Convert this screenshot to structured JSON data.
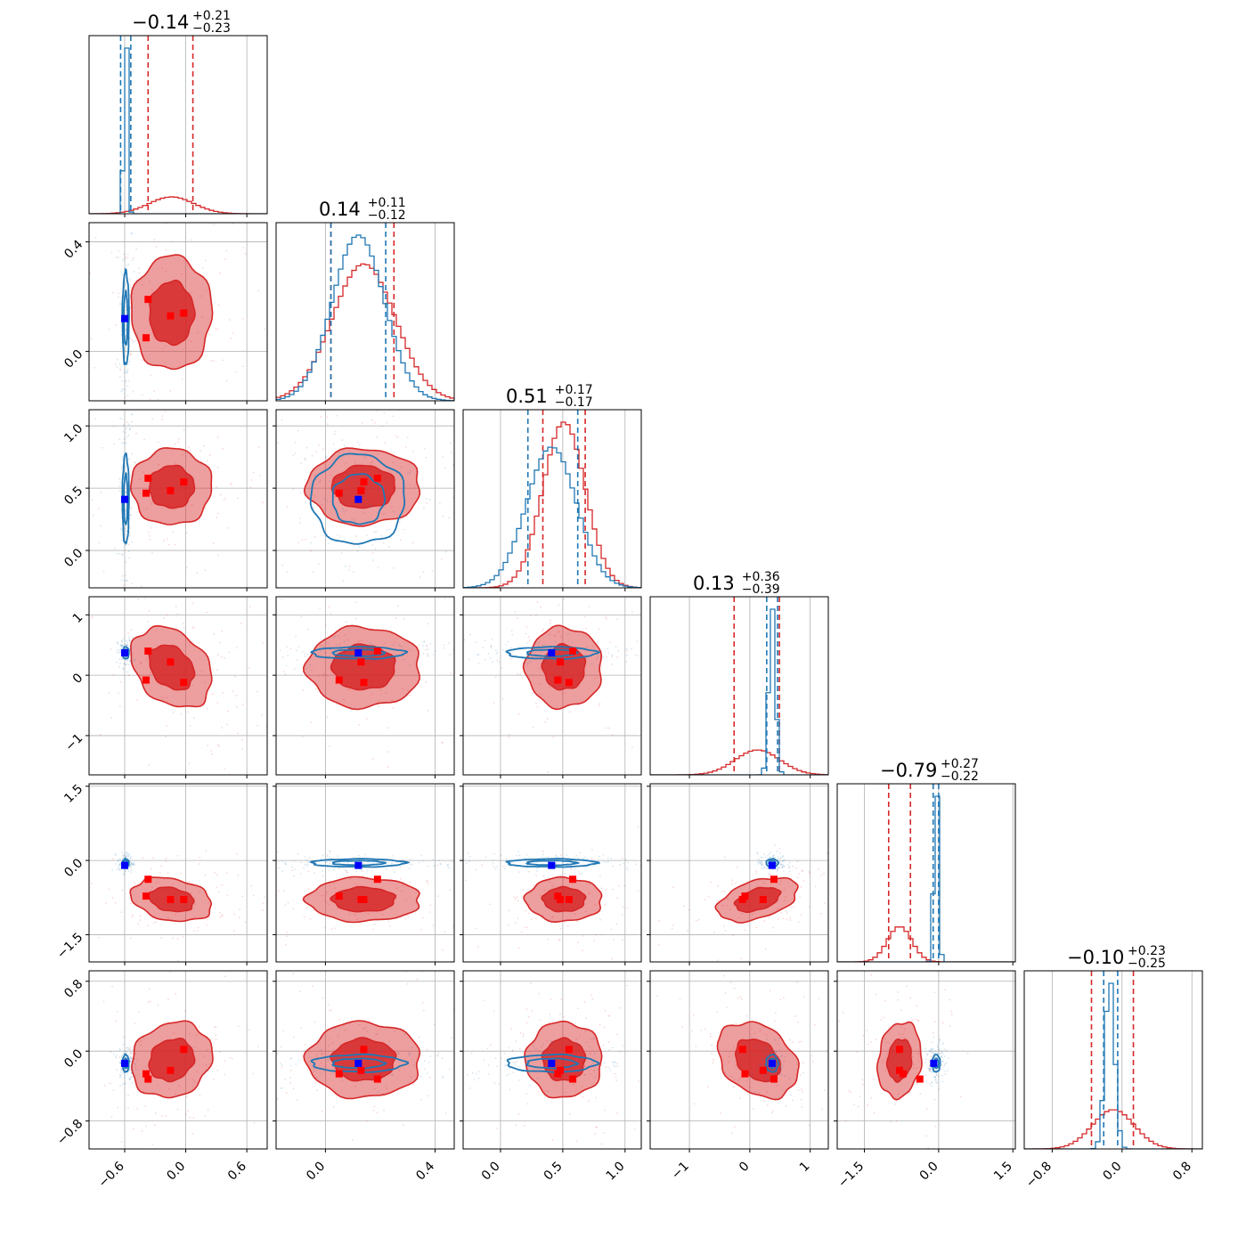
{
  "chart_data": {
    "type": "corner",
    "title_texts": [
      {
        "main": "−0.14",
        "plus": "+0.21",
        "minus": "−0.23"
      },
      {
        "main": "0.14",
        "plus": "+0.11",
        "minus": "−0.12"
      },
      {
        "main": "0.51",
        "plus": "+0.17",
        "minus": "−0.17"
      },
      {
        "main": "0.13",
        "plus": "+0.36",
        "minus": "−0.39"
      },
      {
        "main": "−0.79",
        "plus": "+0.27",
        "minus": "−0.22"
      },
      {
        "main": "−0.10",
        "plus": "+0.23",
        "minus": "−0.25"
      }
    ],
    "params": [
      {
        "range": [
          -0.95,
          0.8
        ],
        "ticks": [
          -0.6,
          0.0,
          0.6
        ],
        "tick_labels": [
          "−0.6",
          "0.0",
          "0.6"
        ]
      },
      {
        "range": [
          -0.18,
          0.47
        ],
        "ticks": [
          0.0,
          0.4
        ],
        "tick_labels": [
          "0.0",
          "0.4"
        ]
      },
      {
        "range": [
          -0.3,
          1.13
        ],
        "ticks": [
          0.0,
          0.5,
          1.0
        ],
        "tick_labels": [
          "0.0",
          "0.5",
          "1.0"
        ]
      },
      {
        "range": [
          -1.65,
          1.3
        ],
        "ticks": [
          -1,
          0,
          1
        ],
        "tick_labels": [
          "−1",
          "0",
          "1"
        ]
      },
      {
        "range": [
          -2.05,
          1.55
        ],
        "ticks": [
          -1.5,
          0.0,
          1.5
        ],
        "tick_labels": [
          "−1.5",
          "0.0",
          "1.5"
        ]
      },
      {
        "range": [
          -1.12,
          0.92
        ],
        "ticks": [
          -0.8,
          0.0,
          0.8
        ],
        "tick_labels": [
          "−0.8",
          "0.0",
          "0.8"
        ]
      }
    ],
    "series": [
      {
        "color": "#d62728",
        "means": [
          -0.14,
          0.14,
          0.51,
          0.13,
          -0.79,
          -0.1
        ],
        "sds": [
          0.22,
          0.115,
          0.17,
          0.37,
          0.245,
          0.24
        ],
        "quantile_lines": [
          [
            -0.37,
            0.07
          ],
          [
            0.02,
            0.25
          ],
          [
            0.34,
            0.68
          ],
          [
            -0.26,
            0.49
          ],
          [
            -1.01,
            -0.57
          ],
          [
            -0.35,
            0.13
          ]
        ],
        "corr": [
          [
            1,
            0,
            0,
            -0.3,
            -0.25,
            0.15
          ],
          [
            0,
            1,
            0,
            0,
            0,
            0
          ],
          [
            0,
            0,
            1,
            0,
            0,
            0
          ],
          [
            -0.3,
            0,
            0,
            1,
            0.45,
            -0.3
          ],
          [
            -0.25,
            0,
            0,
            0.45,
            1,
            0.15
          ],
          [
            0.15,
            0,
            0,
            -0.3,
            0.15,
            1
          ]
        ]
      },
      {
        "color": "#1f77b4",
        "means": [
          -0.59,
          0.12,
          0.41,
          0.37,
          -0.05,
          -0.14
        ],
        "sds": [
          0.018,
          0.095,
          0.2,
          0.055,
          0.045,
          0.055
        ],
        "quantile_lines": [
          [
            -0.64,
            -0.54
          ],
          [
            0.02,
            0.22
          ],
          [
            0.22,
            0.62
          ],
          [
            0.28,
            0.46
          ],
          [
            -0.11,
            0.0
          ],
          [
            -0.21,
            -0.05
          ]
        ],
        "corr": [
          [
            1,
            0,
            0,
            0,
            0,
            0
          ],
          [
            0,
            1,
            0,
            0,
            0,
            0
          ],
          [
            0,
            0,
            1,
            0,
            0,
            0
          ],
          [
            0,
            0,
            0,
            1,
            0,
            0
          ],
          [
            0,
            0,
            0,
            0,
            1,
            0
          ],
          [
            0,
            0,
            0,
            0,
            0,
            1
          ]
        ]
      }
    ],
    "markers": {
      "red": [
        [
          -0.37,
          0.19,
          0.58,
          0.4,
          -0.38,
          -0.32
        ],
        [
          -0.39,
          0.05,
          0.46,
          -0.08,
          -0.72,
          -0.26
        ],
        [
          -0.15,
          0.13,
          0.48,
          0.22,
          -0.79,
          -0.22
        ],
        [
          -0.02,
          0.14,
          0.55,
          -0.12,
          -0.79,
          0.02
        ]
      ],
      "blue": [
        -0.6,
        0.12,
        0.41,
        0.37,
        -0.1,
        -0.14
      ]
    },
    "contour_levels": [
      "39%",
      "86%"
    ],
    "grid": true
  }
}
